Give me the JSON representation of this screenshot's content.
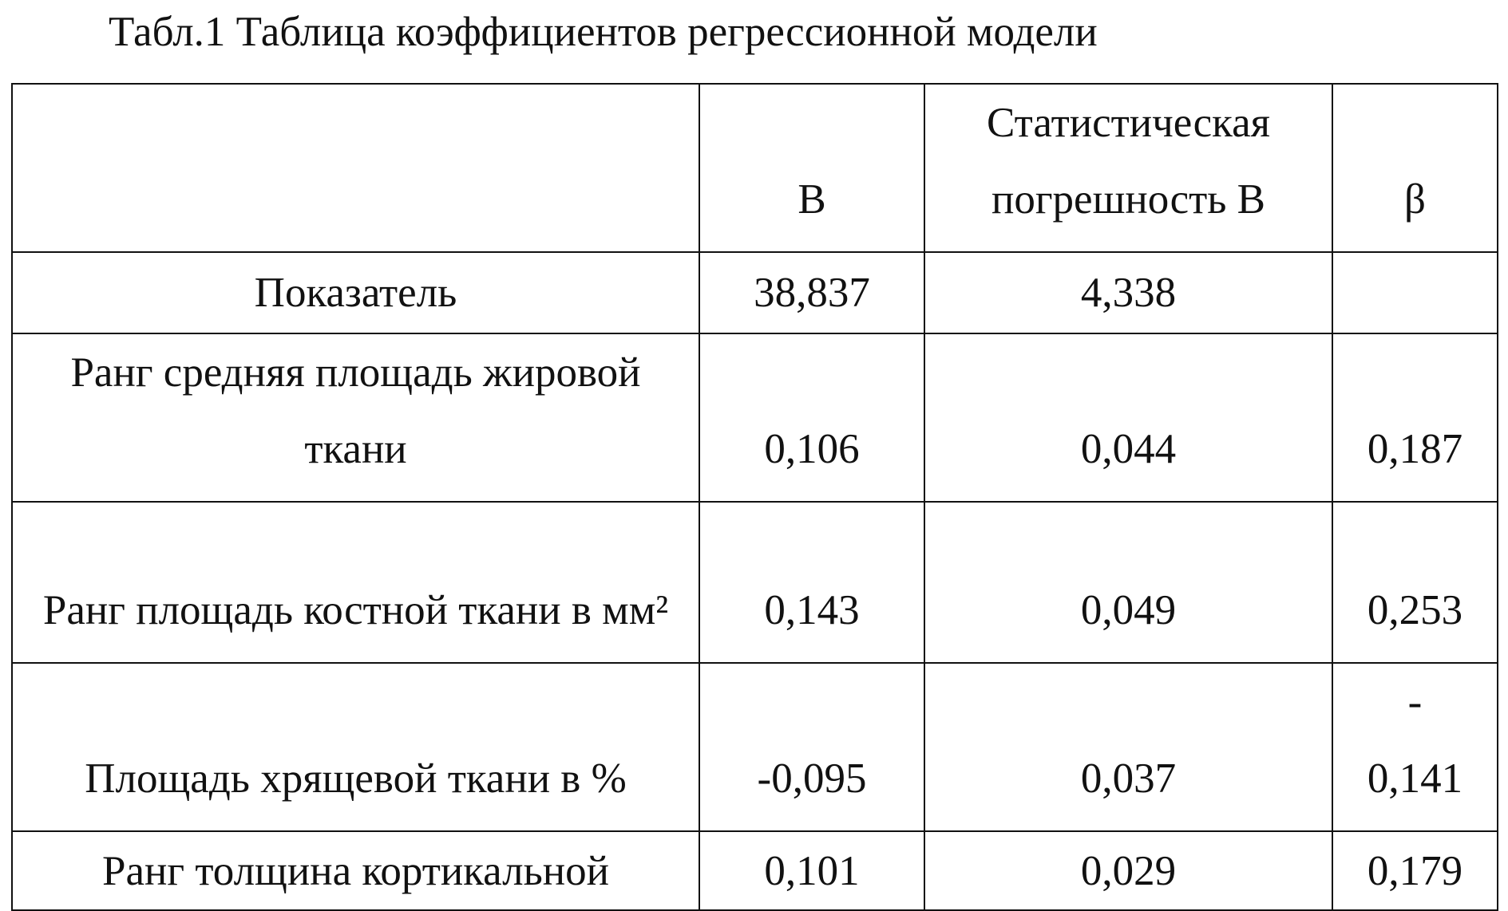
{
  "title": "Табл.1 Таблица коэффициентов регрессионной модели",
  "table": {
    "header": [
      null,
      "В",
      "Статистическая погрешность В",
      "β"
    ],
    "rows": [
      [
        "Показатель",
        "38,837",
        "4,338",
        null
      ],
      [
        "Ранг средняя площадь жировой ткани",
        "0,106",
        "0,044",
        "0,187"
      ],
      [
        "Ранг площадь костной ткани в мм²",
        "0,143",
        "0,049",
        "0,253"
      ],
      [
        "Площадь хрящевой ткани в %",
        "-0,095",
        "0,037",
        "-\n0,141"
      ],
      [
        "Ранг толщина кортикальной",
        "0,101",
        "0,029",
        "0,179"
      ]
    ]
  }
}
